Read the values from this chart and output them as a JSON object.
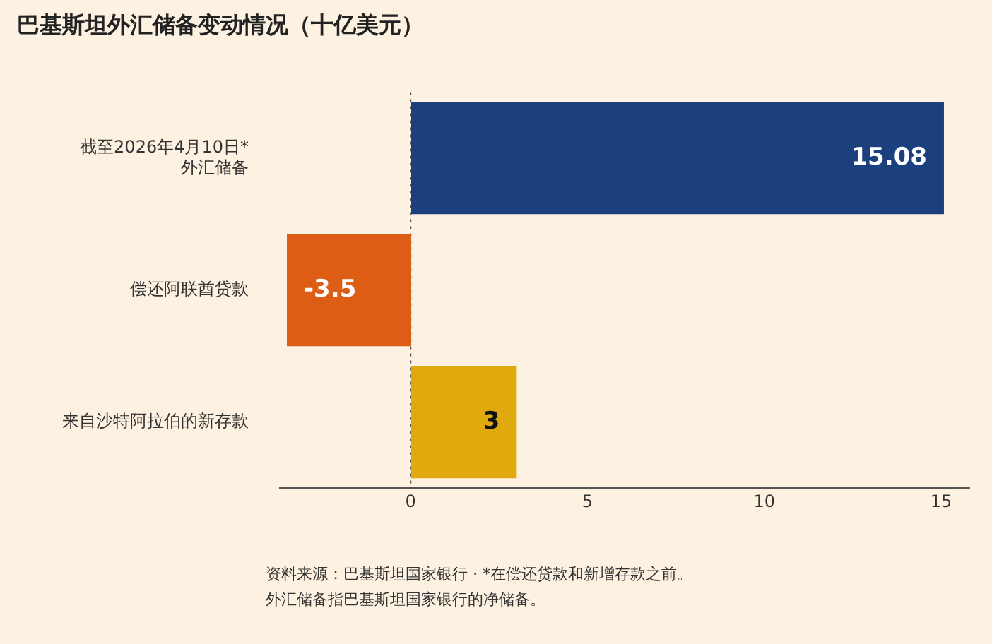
{
  "chart_data": {
    "type": "bar",
    "orientation": "horizontal",
    "title": "巴基斯坦外汇储备变动情况（十亿美元）",
    "categories": [
      "截至2026年4月10日*\n外汇储备",
      "偿还阿联酋贷款",
      "来自沙特阿拉伯的新存款"
    ],
    "values": [
      15.08,
      -3.5,
      3
    ],
    "colors": [
      "#1c3f7e",
      "#dd5d14",
      "#e0a90e"
    ],
    "xlim": [
      -3.7,
      15.8
    ],
    "xticks": [
      0,
      5,
      10,
      15
    ],
    "ref_lines": [
      {
        "axis": "x",
        "value": 0,
        "color": "#333333",
        "line_style": "dotted"
      }
    ],
    "data_labels": true,
    "grid": false,
    "legend": false,
    "annotations": [
      "资料来源：巴基斯坦国家银行 · *在偿还贷款和新增存款之前。",
      "外汇储备指巴基斯坦国家银行的净储备。"
    ]
  }
}
